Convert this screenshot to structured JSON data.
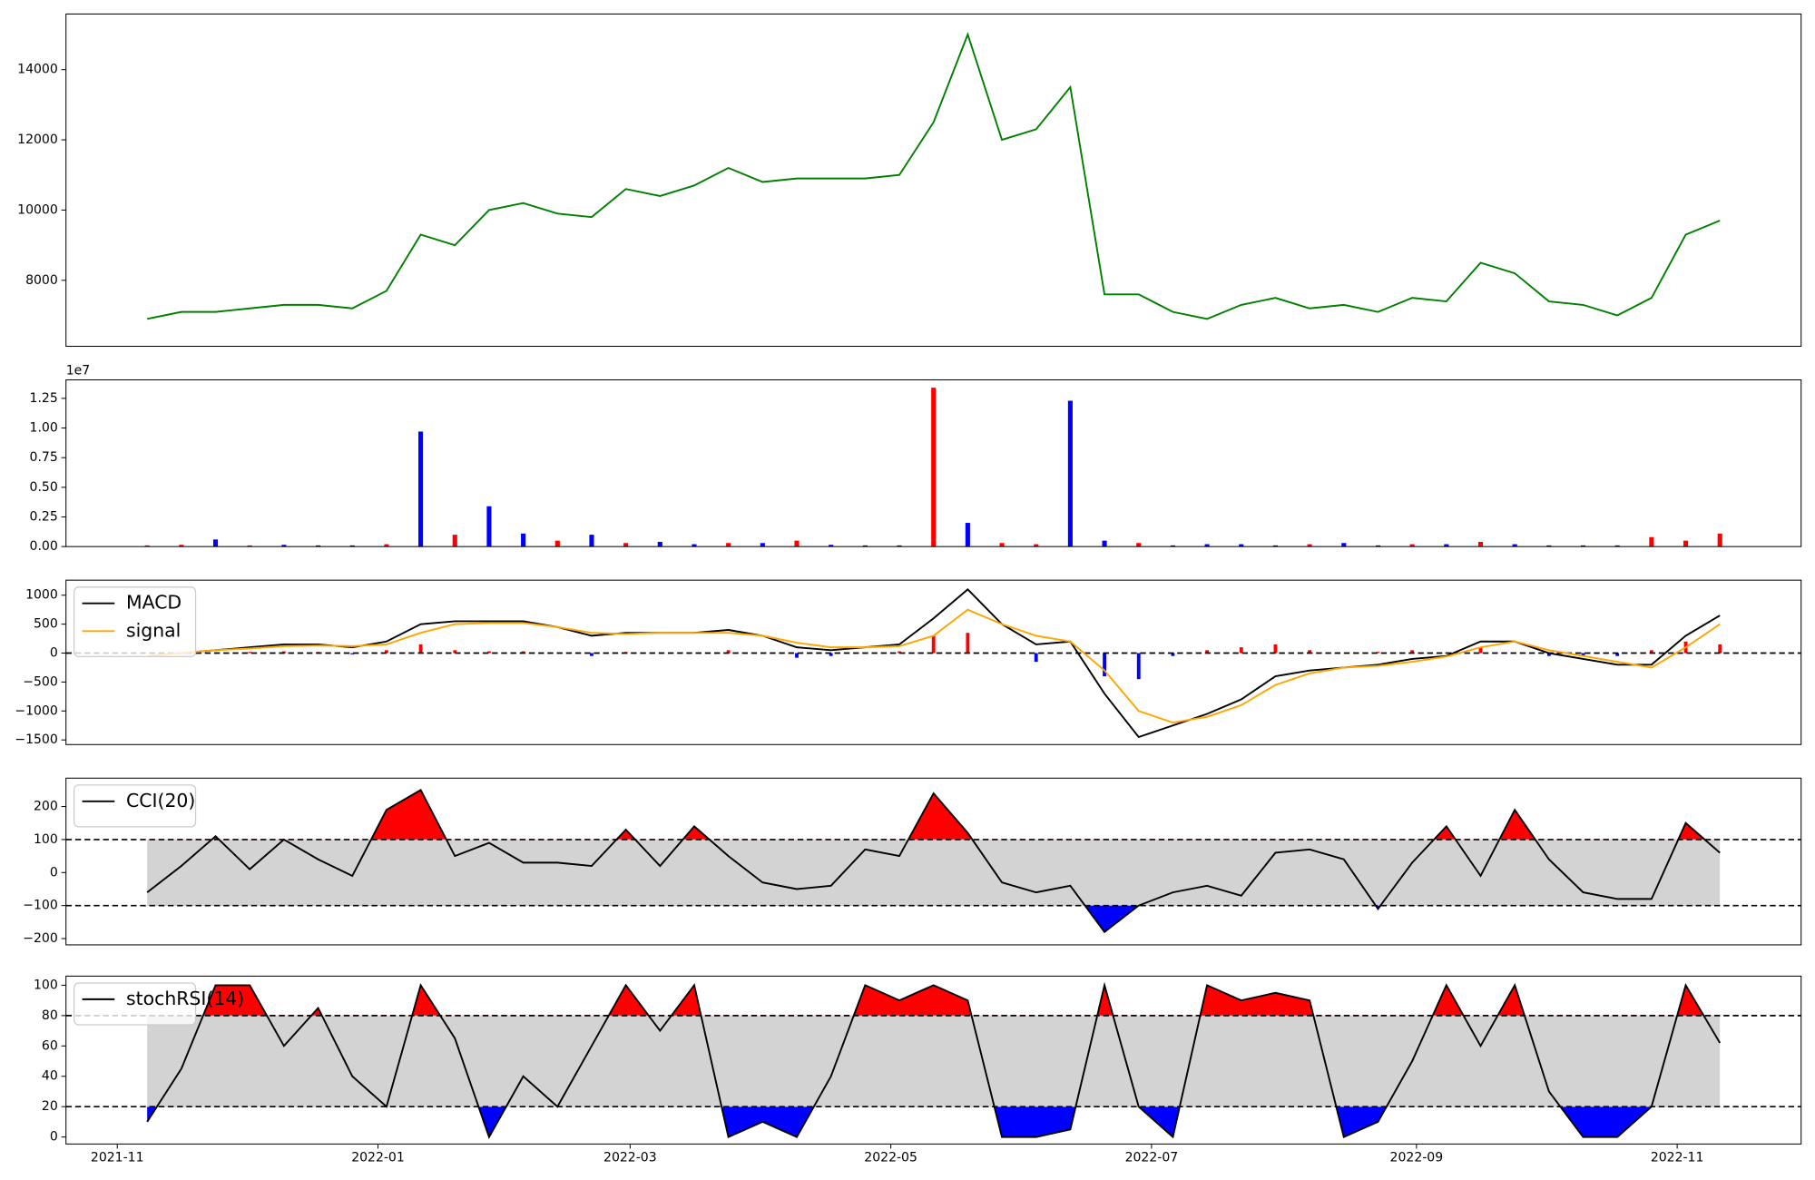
{
  "chart_data": [
    {
      "type": "line",
      "x": [
        18939,
        18947,
        18955,
        18963,
        18971,
        18979,
        18987,
        18995,
        19003,
        19011,
        19019,
        19027,
        19035,
        19043,
        19051,
        19059,
        19067,
        19075,
        19083,
        19091,
        19099,
        19107,
        19115,
        19123,
        19131,
        19139,
        19147,
        19155,
        19163,
        19171,
        19179,
        19187,
        19195,
        19203,
        19211,
        19219,
        19227,
        19235,
        19243,
        19251,
        19259,
        19267,
        19275,
        19283,
        19291,
        19299,
        19307
      ],
      "xlim": [
        18920,
        19326
      ],
      "ylim": [
        6121,
        15583
      ],
      "yticks": [
        8000,
        10000,
        12000,
        14000
      ],
      "series": [
        {
          "color": "#008000",
          "values": [
            6900,
            7100,
            7100,
            7200,
            7300,
            7300,
            7200,
            7700,
            9300,
            9000,
            10000,
            10200,
            9900,
            9800,
            10600,
            10400,
            10700,
            11200,
            10800,
            10900,
            10900,
            10900,
            11000,
            12500,
            15000,
            12000,
            12300,
            13500,
            7600,
            7600,
            7100,
            6900,
            7300,
            7500,
            7200,
            7300,
            7100,
            7500,
            7400,
            8500,
            8200,
            7400,
            7300,
            7000,
            7500,
            9300,
            9700
          ]
        }
      ]
    },
    {
      "type": "bar",
      "x": [
        18939,
        18947,
        18955,
        18963,
        18971,
        18979,
        18987,
        18995,
        19003,
        19011,
        19019,
        19027,
        19035,
        19043,
        19051,
        19059,
        19067,
        19075,
        19083,
        19091,
        19099,
        19107,
        19115,
        19123,
        19131,
        19139,
        19147,
        19155,
        19163,
        19171,
        19179,
        19187,
        19195,
        19203,
        19211,
        19219,
        19227,
        19235,
        19243,
        19251,
        19259,
        19267,
        19275,
        19283,
        19291,
        19299,
        19307
      ],
      "xlim": [
        18920,
        19326
      ],
      "ylim": [
        0,
        14060000
      ],
      "yticks": [
        {
          "value": 0,
          "label": "0.00"
        },
        {
          "value": 2500000,
          "label": "0.25"
        },
        {
          "value": 5000000,
          "label": "0.50"
        },
        {
          "value": 7500000,
          "label": "0.75"
        },
        {
          "value": 10000000,
          "label": "1.00"
        },
        {
          "value": 12500000,
          "label": "1.25"
        }
      ],
      "offset_text": "1e7",
      "values": [
        100000,
        150000,
        600000,
        100000,
        150000,
        100000,
        100000,
        200000,
        9700000,
        1000000,
        3400000,
        1100000,
        500000,
        1000000,
        300000,
        400000,
        200000,
        300000,
        300000,
        500000,
        150000,
        100000,
        100000,
        13400000,
        2000000,
        300000,
        200000,
        12300000,
        500000,
        300000,
        100000,
        200000,
        200000,
        100000,
        200000,
        300000,
        100000,
        200000,
        200000,
        400000,
        200000,
        100000,
        100000,
        100000,
        800000,
        500000,
        1100000
      ],
      "bar_colors": [
        "red",
        "red",
        "blue",
        "red",
        "blue",
        "blue",
        "blue",
        "red",
        "blue",
        "red",
        "blue",
        "blue",
        "red",
        "blue",
        "red",
        "blue",
        "blue",
        "red",
        "blue",
        "red",
        "blue",
        "blue",
        "blue",
        "red",
        "blue",
        "red",
        "red",
        "blue",
        "blue",
        "red",
        "blue",
        "blue",
        "blue",
        "blue",
        "red",
        "blue",
        "blue",
        "red",
        "blue",
        "red",
        "blue",
        "blue",
        "blue",
        "blue",
        "red",
        "red",
        "red"
      ]
    },
    {
      "type": "line",
      "x": [
        18939,
        18947,
        18955,
        18963,
        18971,
        18979,
        18987,
        18995,
        19003,
        19011,
        19019,
        19027,
        19035,
        19043,
        19051,
        19059,
        19067,
        19075,
        19083,
        19091,
        19099,
        19107,
        19115,
        19123,
        19131,
        19139,
        19147,
        19155,
        19163,
        19171,
        19179,
        19187,
        19195,
        19203,
        19211,
        19219,
        19227,
        19235,
        19243,
        19251,
        19259,
        19267,
        19275,
        19283,
        19291,
        19299,
        19307
      ],
      "xlim": [
        18920,
        19326
      ],
      "ylim": [
        -1580,
        1260
      ],
      "yticks": [
        {
          "value": -1500,
          "label": "−1500"
        },
        {
          "value": -1000,
          "label": "−1000"
        },
        {
          "value": -500,
          "label": "−500"
        },
        0,
        500,
        1000
      ],
      "hlines": [
        0
      ],
      "histogram": {
        "up_color": "red",
        "down_color": "blue",
        "values": [
          0,
          0,
          0,
          20,
          30,
          20,
          -20,
          50,
          150,
          50,
          30,
          30,
          0,
          -50,
          20,
          0,
          0,
          50,
          0,
          -80,
          -50,
          0,
          30,
          300,
          350,
          0,
          -150,
          0,
          -400,
          -450,
          -50,
          50,
          100,
          150,
          50,
          0,
          20,
          50,
          10,
          100,
          0,
          -50,
          -50,
          -50,
          50,
          200,
          150
        ]
      },
      "legend": "upper left",
      "series": [
        {
          "name": "MACD",
          "color": "#000000",
          "values": [
            -50,
            0,
            50,
            100,
            150,
            150,
            100,
            200,
            500,
            550,
            550,
            550,
            450,
            300,
            350,
            350,
            350,
            400,
            300,
            100,
            50,
            100,
            150,
            600,
            1100,
            500,
            150,
            200,
            -700,
            -1450,
            -1250,
            -1050,
            -800,
            -400,
            -300,
            -250,
            -200,
            -100,
            -50,
            200,
            200,
            0,
            -100,
            -200,
            -200,
            300,
            650
          ]
        },
        {
          "name": "signal",
          "color": "#ffa500",
          "values": [
            -50,
            0,
            50,
            80,
            120,
            130,
            120,
            150,
            350,
            500,
            520,
            520,
            450,
            350,
            330,
            350,
            350,
            350,
            300,
            180,
            100,
            100,
            120,
            300,
            750,
            500,
            300,
            200,
            -300,
            -1000,
            -1200,
            -1100,
            -900,
            -550,
            -350,
            -250,
            -220,
            -150,
            -60,
            100,
            200,
            50,
            -50,
            -150,
            -250,
            100,
            500
          ]
        }
      ]
    },
    {
      "type": "line",
      "x": [
        18939,
        18947,
        18955,
        18963,
        18971,
        18979,
        18987,
        18995,
        19003,
        19011,
        19019,
        19027,
        19035,
        19043,
        19051,
        19059,
        19067,
        19075,
        19083,
        19091,
        19099,
        19107,
        19115,
        19123,
        19131,
        19139,
        19147,
        19155,
        19163,
        19171,
        19179,
        19187,
        19195,
        19203,
        19211,
        19219,
        19227,
        19235,
        19243,
        19251,
        19259,
        19267,
        19275,
        19283,
        19291,
        19299,
        19307
      ],
      "xlim": [
        18920,
        19326
      ],
      "ylim": [
        -219,
        286
      ],
      "yticks": [
        {
          "value": -200,
          "label": "−200"
        },
        {
          "value": -100,
          "label": "−100"
        },
        0,
        100,
        200
      ],
      "hlines": [
        100,
        -100
      ],
      "band": {
        "lower": -100,
        "upper": 100,
        "color": "#d3d3d3",
        "upper_fill": "red",
        "lower_fill": "blue"
      },
      "legend": "upper left",
      "series": [
        {
          "name": "CCI(20)",
          "color": "#000000",
          "values": [
            -60,
            20,
            110,
            10,
            100,
            40,
            -10,
            190,
            250,
            50,
            90,
            30,
            30,
            20,
            130,
            20,
            140,
            50,
            -30,
            -50,
            -40,
            70,
            50,
            240,
            120,
            -30,
            -60,
            -40,
            -180,
            -100,
            -60,
            -40,
            -70,
            60,
            70,
            40,
            -110,
            30,
            140,
            -10,
            190,
            40,
            -60,
            -80,
            -80,
            150,
            60
          ]
        }
      ]
    },
    {
      "type": "line",
      "x": [
        18939,
        18947,
        18955,
        18963,
        18971,
        18979,
        18987,
        18995,
        19003,
        19011,
        19019,
        19027,
        19035,
        19043,
        19051,
        19059,
        19067,
        19075,
        19083,
        19091,
        19099,
        19107,
        19115,
        19123,
        19131,
        19139,
        19147,
        19155,
        19163,
        19171,
        19179,
        19187,
        19195,
        19203,
        19211,
        19219,
        19227,
        19235,
        19243,
        19251,
        19259,
        19267,
        19275,
        19283,
        19291,
        19299,
        19307
      ],
      "xlim": [
        18920,
        19326
      ],
      "xticks": [
        {
          "value": 18932,
          "label": "2021-11"
        },
        {
          "value": 18993,
          "label": "2022-01"
        },
        {
          "value": 19052,
          "label": "2022-03"
        },
        {
          "value": 19113,
          "label": "2022-05"
        },
        {
          "value": 19174,
          "label": "2022-07"
        },
        {
          "value": 19236,
          "label": "2022-09"
        },
        {
          "value": 19297,
          "label": "2022-11"
        }
      ],
      "ylim": [
        -4.6,
        106
      ],
      "yticks": [
        0,
        20,
        40,
        60,
        80,
        100
      ],
      "hlines": [
        80,
        20
      ],
      "band": {
        "lower": 20,
        "upper": 80,
        "color": "#d3d3d3",
        "upper_fill": "red",
        "lower_fill": "blue"
      },
      "legend": "upper left",
      "series": [
        {
          "name": "stochRSI(14)",
          "color": "#000000",
          "values": [
            10,
            45,
            100,
            100,
            60,
            85,
            40,
            20,
            100,
            65,
            0,
            40,
            20,
            60,
            100,
            70,
            100,
            0,
            10,
            0,
            40,
            100,
            90,
            100,
            90,
            0,
            0,
            5,
            100,
            20,
            0,
            100,
            90,
            95,
            90,
            0,
            10,
            50,
            100,
            60,
            100,
            30,
            0,
            0,
            20,
            100,
            62
          ]
        }
      ]
    }
  ]
}
